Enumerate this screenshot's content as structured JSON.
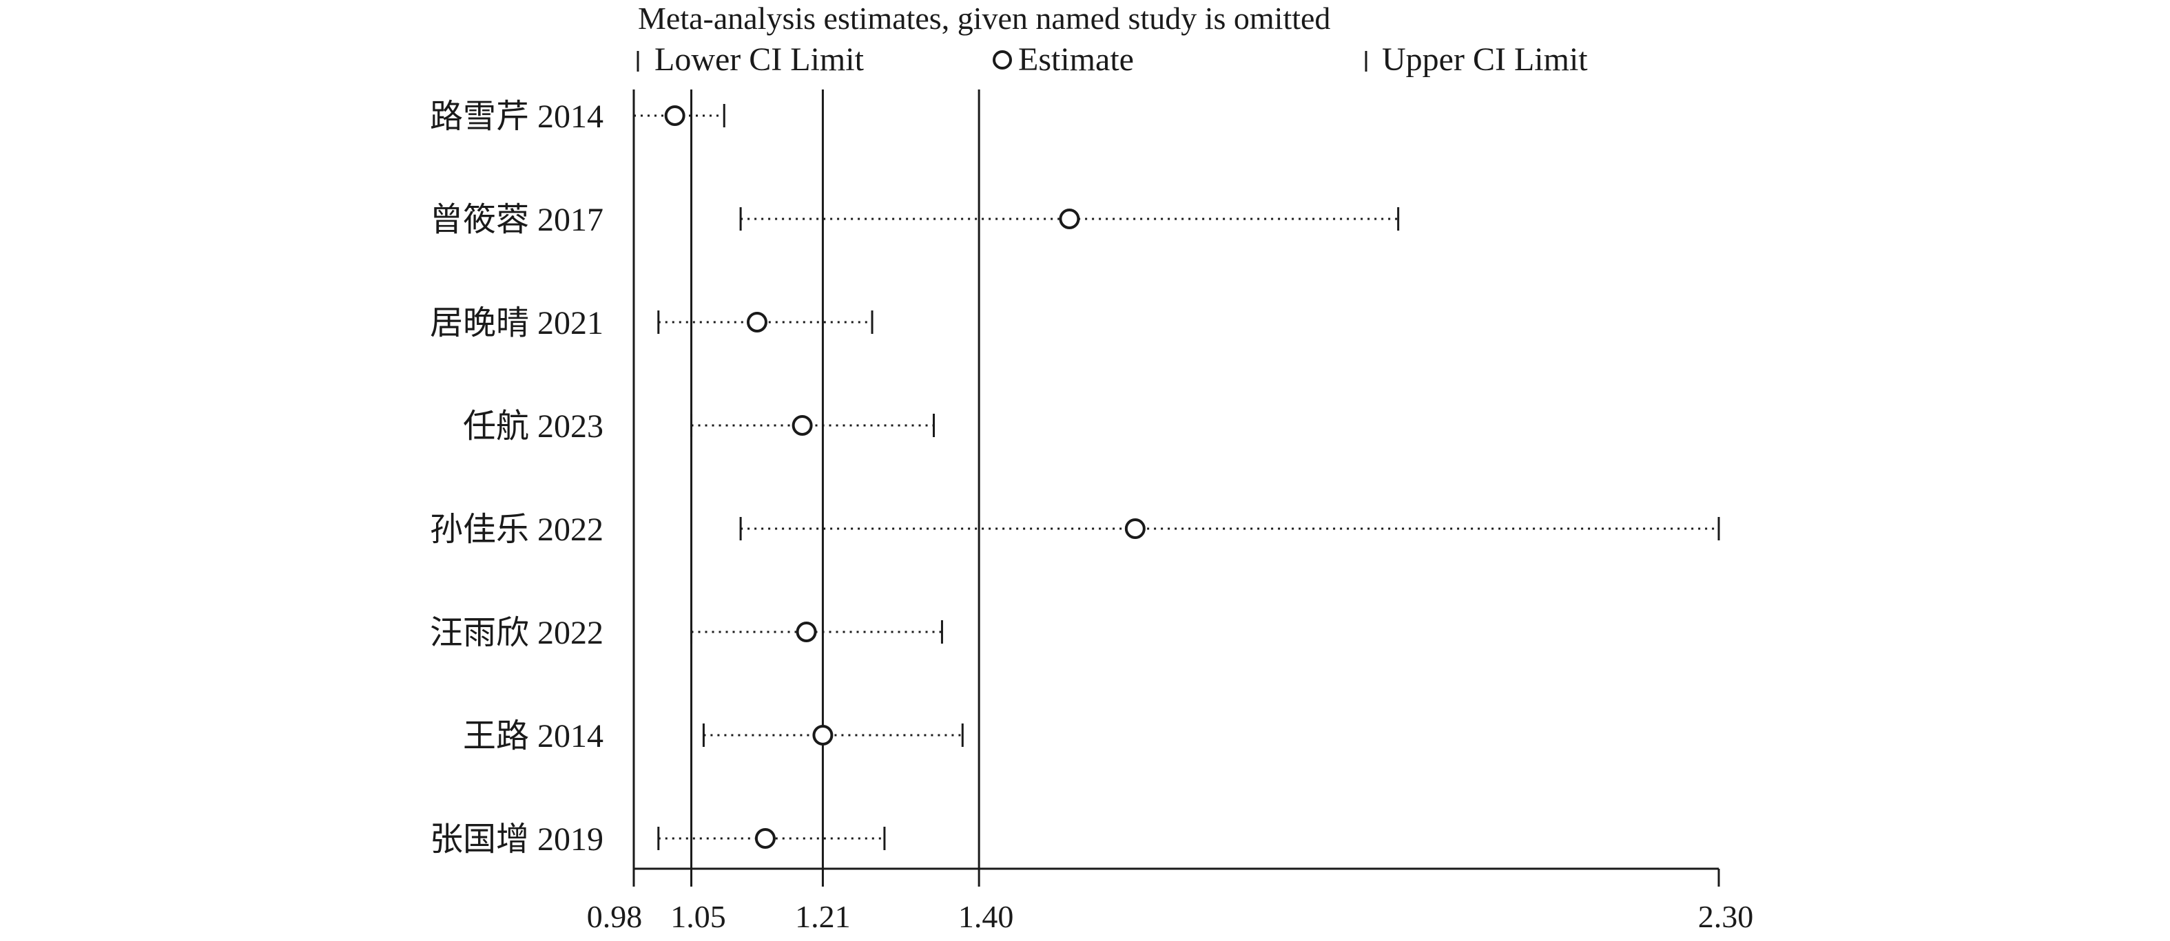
{
  "chart_data": {
    "type": "forest",
    "title": "Meta-analysis estimates, given named study is omitted",
    "legend": {
      "placement": "top",
      "lower": "Lower CI Limit",
      "estimate": "Estimate",
      "upper": "Upper CI Limit"
    },
    "studies": [
      {
        "label": "路雪芹 2014",
        "lower": 0.98,
        "estimate": 1.03,
        "upper": 1.09
      },
      {
        "label": "曾筱蓉 2017",
        "lower": 1.11,
        "estimate": 1.51,
        "upper": 1.91
      },
      {
        "label": "居晚晴 2021",
        "lower": 1.01,
        "estimate": 1.13,
        "upper": 1.27
      },
      {
        "label": "任航 2023",
        "lower": 1.05,
        "estimate": 1.185,
        "upper": 1.345
      },
      {
        "label": "孙佳乐 2022",
        "lower": 1.11,
        "estimate": 1.59,
        "upper": 2.3
      },
      {
        "label": "汪雨欣 2022",
        "lower": 1.05,
        "estimate": 1.19,
        "upper": 1.355
      },
      {
        "label": "王路 2014",
        "lower": 1.065,
        "estimate": 1.21,
        "upper": 1.38
      },
      {
        "label": "张国增 2019",
        "lower": 1.01,
        "estimate": 1.14,
        "upper": 1.285
      }
    ],
    "xlim": [
      0.98,
      2.3
    ],
    "xticks": [
      0.98,
      1.05,
      1.21,
      1.4,
      2.3
    ],
    "xtick_labels": [
      "0.98",
      "1.05",
      "1.21",
      "1.40",
      "2.30"
    ],
    "reference_lines": [
      1.05,
      1.21,
      1.4
    ]
  }
}
